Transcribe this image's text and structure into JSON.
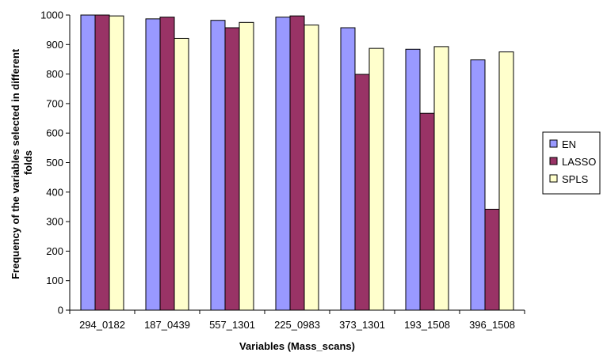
{
  "chart_data": {
    "type": "bar",
    "title": "",
    "xlabel": "Variables (Mass_scans)",
    "ylabel_lines": [
      "Frequency of the variables selected in different",
      "folds"
    ],
    "ylim": [
      0,
      1000
    ],
    "yticks": [
      0,
      100,
      200,
      300,
      400,
      500,
      600,
      700,
      800,
      900,
      1000
    ],
    "categories": [
      "294_0182",
      "187_0439",
      "557_1301",
      "225_0983",
      "373_1301",
      "193_1508",
      "396_1508"
    ],
    "series": [
      {
        "name": "EN",
        "color": "#9999ff",
        "values": [
          1000,
          987,
          982,
          993,
          957,
          884,
          848
        ]
      },
      {
        "name": "LASSO",
        "color": "#993366",
        "values": [
          1000,
          993,
          957,
          997,
          799,
          667,
          342
        ]
      },
      {
        "name": "SPLS",
        "color": "#ffffcc",
        "values": [
          997,
          921,
          975,
          966,
          887,
          893,
          875
        ]
      }
    ],
    "grid": false,
    "legend_position": "right"
  }
}
